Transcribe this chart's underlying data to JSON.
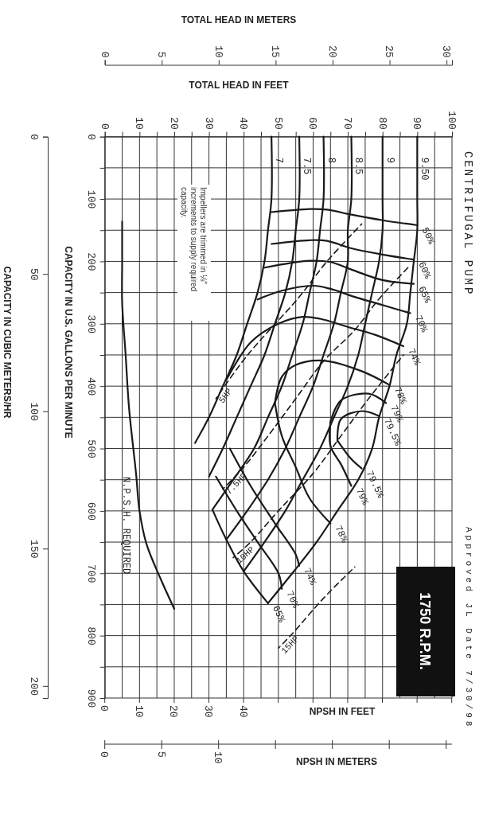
{
  "chart_data": {
    "type": "line",
    "title": "CENTRIFUGAL PUMP",
    "subtitle": "1750 R.P.M.",
    "xlabel": "TOTAL HEAD IN FEET",
    "x2label": "TOTAL HEAD IN METERS",
    "ylabel": "CAPACITY IN U.S. GALLONS PER MINUTE",
    "y2label": "CAPACITY IN CUBIC METERS/HR",
    "annotations": [
      "Impellers are trimmed in ⅛\" increments to supply required capacity.",
      "Approved JL Date 7/30/98",
      "NPSH IN FEET",
      "0",
      "10",
      "20",
      "30",
      "40",
      "NPSH IN METERS",
      "0",
      "5",
      "10"
    ],
    "xlim": [
      0,
      100
    ],
    "xticks": [
      0,
      {
        "value": 5,
        "label": null
      },
      10,
      {
        "value": 15,
        "label": null
      },
      20,
      {
        "value": 25,
        "label": null
      },
      30,
      {
        "value": 35,
        "label": null
      },
      40,
      {
        "value": 45,
        "label": null
      },
      50,
      {
        "value": 55,
        "label": null
      },
      60,
      {
        "value": 65,
        "label": null
      },
      70,
      {
        "value": 75,
        "label": null
      },
      80,
      {
        "value": 85,
        "label": null
      },
      90,
      {
        "value": 95,
        "label": null
      },
      100
    ],
    "x2lim": [
      0,
      30.48
    ],
    "x2ticks": [
      0,
      5,
      10,
      15,
      20,
      25,
      30
    ],
    "ylim": [
      900,
      0
    ],
    "yticks": [
      0,
      {
        "value": 50,
        "label": null
      },
      100,
      {
        "value": 150,
        "label": null
      },
      200,
      {
        "value": 250,
        "label": null
      },
      300,
      {
        "value": 350,
        "label": null
      },
      400,
      {
        "value": 450,
        "label": null
      },
      500,
      {
        "value": 550,
        "label": null
      },
      600,
      {
        "value": 650,
        "label": null
      },
      700,
      {
        "value": 750,
        "label": null
      },
      800,
      {
        "value": 850,
        "label": null
      },
      900
    ],
    "y2lim": [
      204.4,
      0
    ],
    "y2ticks": [
      0,
      50,
      100,
      150,
      200
    ],
    "grid": true,
    "marker": "none",
    "line_style": "solid",
    "series": [
      {
        "name": "7",
        "color": "#1a1a1a",
        "x": [
          48,
          48,
          47,
          46,
          44,
          41,
          38,
          34,
          30,
          26
        ],
        "values": [
          0,
          100,
          150,
          200,
          250,
          300,
          350,
          400,
          450,
          491
        ]
      },
      {
        "name": "7.5",
        "color": "#1a1a1a",
        "x": [
          56,
          56,
          55,
          54,
          52,
          49,
          46,
          42,
          38,
          34,
          30
        ],
        "values": [
          0,
          100,
          150,
          200,
          250,
          300,
          350,
          400,
          450,
          500,
          545
        ]
      },
      {
        "name": "8",
        "color": "#1a1a1a",
        "x": [
          63,
          63,
          62,
          61,
          59,
          57,
          54,
          51,
          47,
          43,
          37,
          31
        ],
        "values": [
          0,
          100,
          150,
          200,
          250,
          300,
          350,
          400,
          450,
          500,
          550,
          598
        ]
      },
      {
        "name": "8.5",
        "color": "#1a1a1a",
        "x": [
          71,
          71,
          70,
          70,
          68,
          66,
          63,
          60,
          56,
          52,
          47,
          41,
          35
        ],
        "values": [
          0,
          100,
          150,
          200,
          250,
          300,
          350,
          400,
          450,
          500,
          550,
          600,
          646
        ]
      },
      {
        "name": "9",
        "color": "#1a1a1a",
        "x": [
          80,
          80,
          80,
          79,
          77,
          75,
          73,
          70,
          66,
          62,
          57,
          52,
          46,
          40
        ],
        "values": [
          0,
          100,
          150,
          200,
          250,
          300,
          350,
          400,
          450,
          500,
          550,
          600,
          650,
          697
        ]
      },
      {
        "name": "9.50",
        "color": "#1a1a1a",
        "x": [
          90,
          90,
          90,
          89,
          88,
          87,
          84,
          82,
          79,
          77,
          73,
          67,
          61,
          54,
          47
        ],
        "values": [
          0,
          100,
          150,
          200,
          250,
          300,
          350,
          400,
          450,
          500,
          550,
          600,
          650,
          700,
          748
        ]
      },
      {
        "name": "50%",
        "color": "#1a1a1a",
        "x": [
          48,
          59,
          64,
          71,
          80,
          90
        ],
        "values": [
          121,
          116,
          117,
          125,
          134,
          142
        ]
      },
      {
        "name": "60%",
        "color": "#1a1a1a",
        "x": [
          48,
          59,
          64,
          71,
          80,
          89
        ],
        "values": [
          172,
          166,
          167,
          179,
          189,
          197
        ]
      },
      {
        "name": "65%",
        "color": "#1a1a1a",
        "x": [
          46,
          59,
          65,
          71,
          80,
          89
        ],
        "values": [
          210,
          199,
          201,
          213,
          230,
          236
        ]
      },
      {
        "name": "70%",
        "color": "#1a1a1a",
        "x": [
          44,
          51,
          60,
          65,
          72,
          80,
          88
        ],
        "values": [
          261,
          247,
          239,
          244,
          257,
          270,
          283
        ]
      },
      {
        "name": "74%",
        "color": "#1a1a1a",
        "x": [
          35,
          42,
          50,
          57,
          62,
          70,
          78,
          86
        ],
        "values": [
          390,
          330,
          300,
          289,
          292,
          305,
          318,
          336
        ]
      },
      {
        "name": "78%",
        "color": "#1a1a1a",
        "x": [
          49,
          51,
          55,
          63,
          74,
          82
        ],
        "values": [
          427,
          385,
          366,
          359,
          376,
          398
        ]
      },
      {
        "name": "79%",
        "color": "#1a1a1a",
        "x": [
          65,
          68,
          76,
          81
        ],
        "values": [
          457,
          423,
          412,
          427
        ]
      },
      {
        "name": "79.5%",
        "color": "#1a1a1a",
        "x": [
          67,
          68,
          74,
          79
        ],
        "values": [
          487,
          453,
          440,
          448
        ]
      },
      {
        "name": "79.5%",
        "color": "#1a1a1a",
        "x": [
          67,
          71,
          74
        ],
        "values": [
          487,
          517,
          532
        ]
      },
      {
        "name": "79%",
        "color": "#1a1a1a",
        "x": [
          65,
          65,
          68,
          71
        ],
        "values": [
          457,
          496,
          525,
          560
        ]
      },
      {
        "name": "78%",
        "color": "#1a1a1a",
        "x": [
          49,
          51,
          55,
          59,
          65
        ],
        "values": [
          427,
          480,
          530,
          580,
          620
        ]
      },
      {
        "name": "74%",
        "color": "#1a1a1a",
        "x": [
          36,
          42,
          49,
          55,
          56
        ],
        "values": [
          500,
          560,
          620,
          670,
          688
        ]
      },
      {
        "name": "70%",
        "color": "#1a1a1a",
        "x": [
          32,
          38,
          44,
          50,
          51
        ],
        "values": [
          545,
          600,
          650,
          700,
          725
        ]
      },
      {
        "name": "65%",
        "color": "#1a1a1a",
        "x": [
          31,
          35,
          40,
          47
        ],
        "values": [
          598,
          646,
          697,
          748
        ]
      },
      {
        "name": "5HP",
        "color": "#1a1a1a",
        "line_style": "dashed",
        "x": [
          74,
          64,
          56,
          41,
          32
        ],
        "values": [
          140,
          200,
          257,
          351,
          420
        ]
      },
      {
        "name": "7.5HP",
        "color": "#1a1a1a",
        "line_style": "dashed",
        "x": [
          88,
          79,
          72,
          63,
          55,
          47,
          40,
          34
        ],
        "values": [
          206,
          260,
          310,
          360,
          420,
          480,
          530,
          565
        ]
      },
      {
        "name": "10HP",
        "color": "#1a1a1a",
        "line_style": "dashed",
        "x": [
          86,
          76,
          68,
          60,
          50,
          42,
          37
        ],
        "values": [
          350,
          420,
          480,
          540,
          600,
          650,
          675
        ]
      },
      {
        "name": "15HP",
        "color": "#1a1a1a",
        "line_style": "dashed",
        "x": [
          72,
          63,
          54,
          50
        ],
        "values": [
          690,
          740,
          797,
          820
        ]
      },
      {
        "name": "N.P.S.H. REQUIRED",
        "color": "#1a1a1a",
        "x": [
          5,
          5,
          5,
          6,
          7,
          9,
          10,
          12,
          16,
          20
        ],
        "values": [
          136,
          200,
          266,
          350,
          436,
          540,
          600,
          653,
          708,
          757
        ]
      }
    ]
  }
}
